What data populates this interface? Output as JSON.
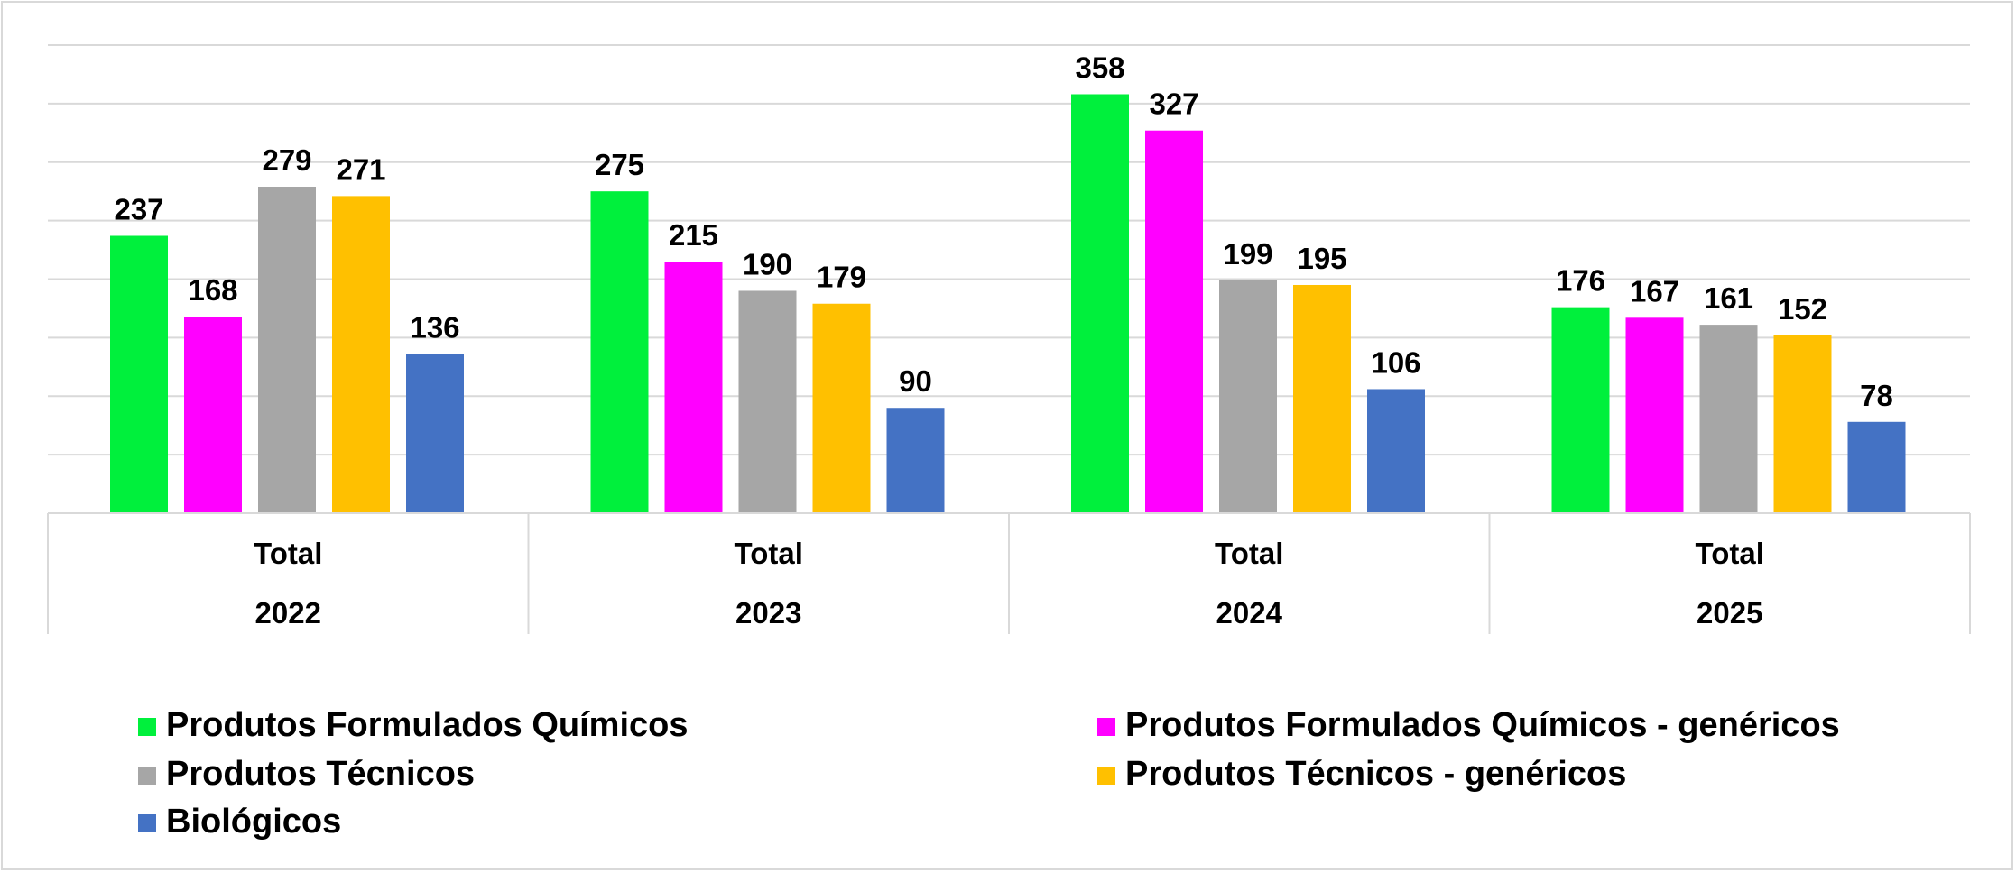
{
  "chart_data": {
    "type": "bar",
    "categories": [
      {
        "label": "Total",
        "group": "2022"
      },
      {
        "label": "Total",
        "group": "2023"
      },
      {
        "label": "Total",
        "group": "2024"
      },
      {
        "label": "Total",
        "group": "2025"
      }
    ],
    "series": [
      {
        "name": "Produtos Formulados Químicos",
        "color": "#00f03c",
        "values": [
          237,
          275,
          358,
          176
        ]
      },
      {
        "name": "Produtos Formulados Químicos - genéricos",
        "color": "#ff00ff",
        "values": [
          168,
          215,
          327,
          167
        ]
      },
      {
        "name": "Produtos Técnicos",
        "color": "#a6a6a6",
        "values": [
          279,
          190,
          199,
          161
        ]
      },
      {
        "name": "Produtos Técnicos - genéricos",
        "color": "#ffc000",
        "values": [
          271,
          179,
          195,
          152
        ]
      },
      {
        "name": "Biológicos",
        "color": "#4472c4",
        "values": [
          136,
          90,
          106,
          78
        ]
      }
    ],
    "ylim": [
      0,
      400
    ],
    "grid": true,
    "legend_position": "bottom",
    "title": "",
    "xlabel": "",
    "ylabel": ""
  }
}
